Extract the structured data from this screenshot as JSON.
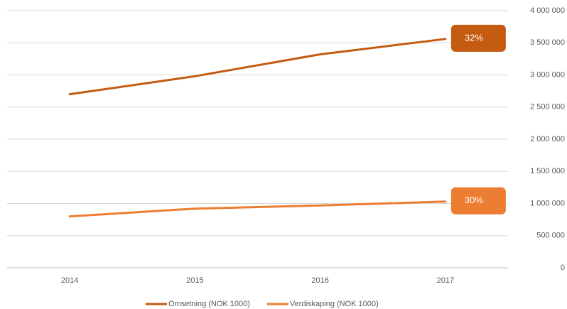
{
  "chart_data": {
    "type": "line",
    "categories": [
      "2014",
      "2015",
      "2016",
      "2017"
    ],
    "series": [
      {
        "name": "Omsetning (NOK 1000)",
        "color": "#c55a11",
        "values": [
          2700000,
          2980000,
          3320000,
          3560000
        ],
        "end_label": "32%"
      },
      {
        "name": "Verdiskaping (NOK 1000)",
        "color": "#ed7d31",
        "values": [
          800000,
          920000,
          970000,
          1030000
        ],
        "end_label": "30%"
      }
    ],
    "ylim": [
      0,
      4000000
    ],
    "yticks": [
      0,
      {
        "value": 500000,
        "label": "500 000"
      },
      {
        "value": 1000000,
        "label": "1 000 000"
      },
      {
        "value": 1500000,
        "label": "1 500 000"
      },
      {
        "value": 2000000,
        "label": "2 000 000"
      },
      {
        "value": 2500000,
        "label": "2 500 000"
      },
      {
        "value": 3000000,
        "label": "3 000 000"
      },
      {
        "value": 3500000,
        "label": "3 500 000"
      },
      {
        "value": 4000000,
        "label": "4 000 000"
      }
    ],
    "grid": true,
    "y_axis_side": "right",
    "legend": "bottom"
  }
}
